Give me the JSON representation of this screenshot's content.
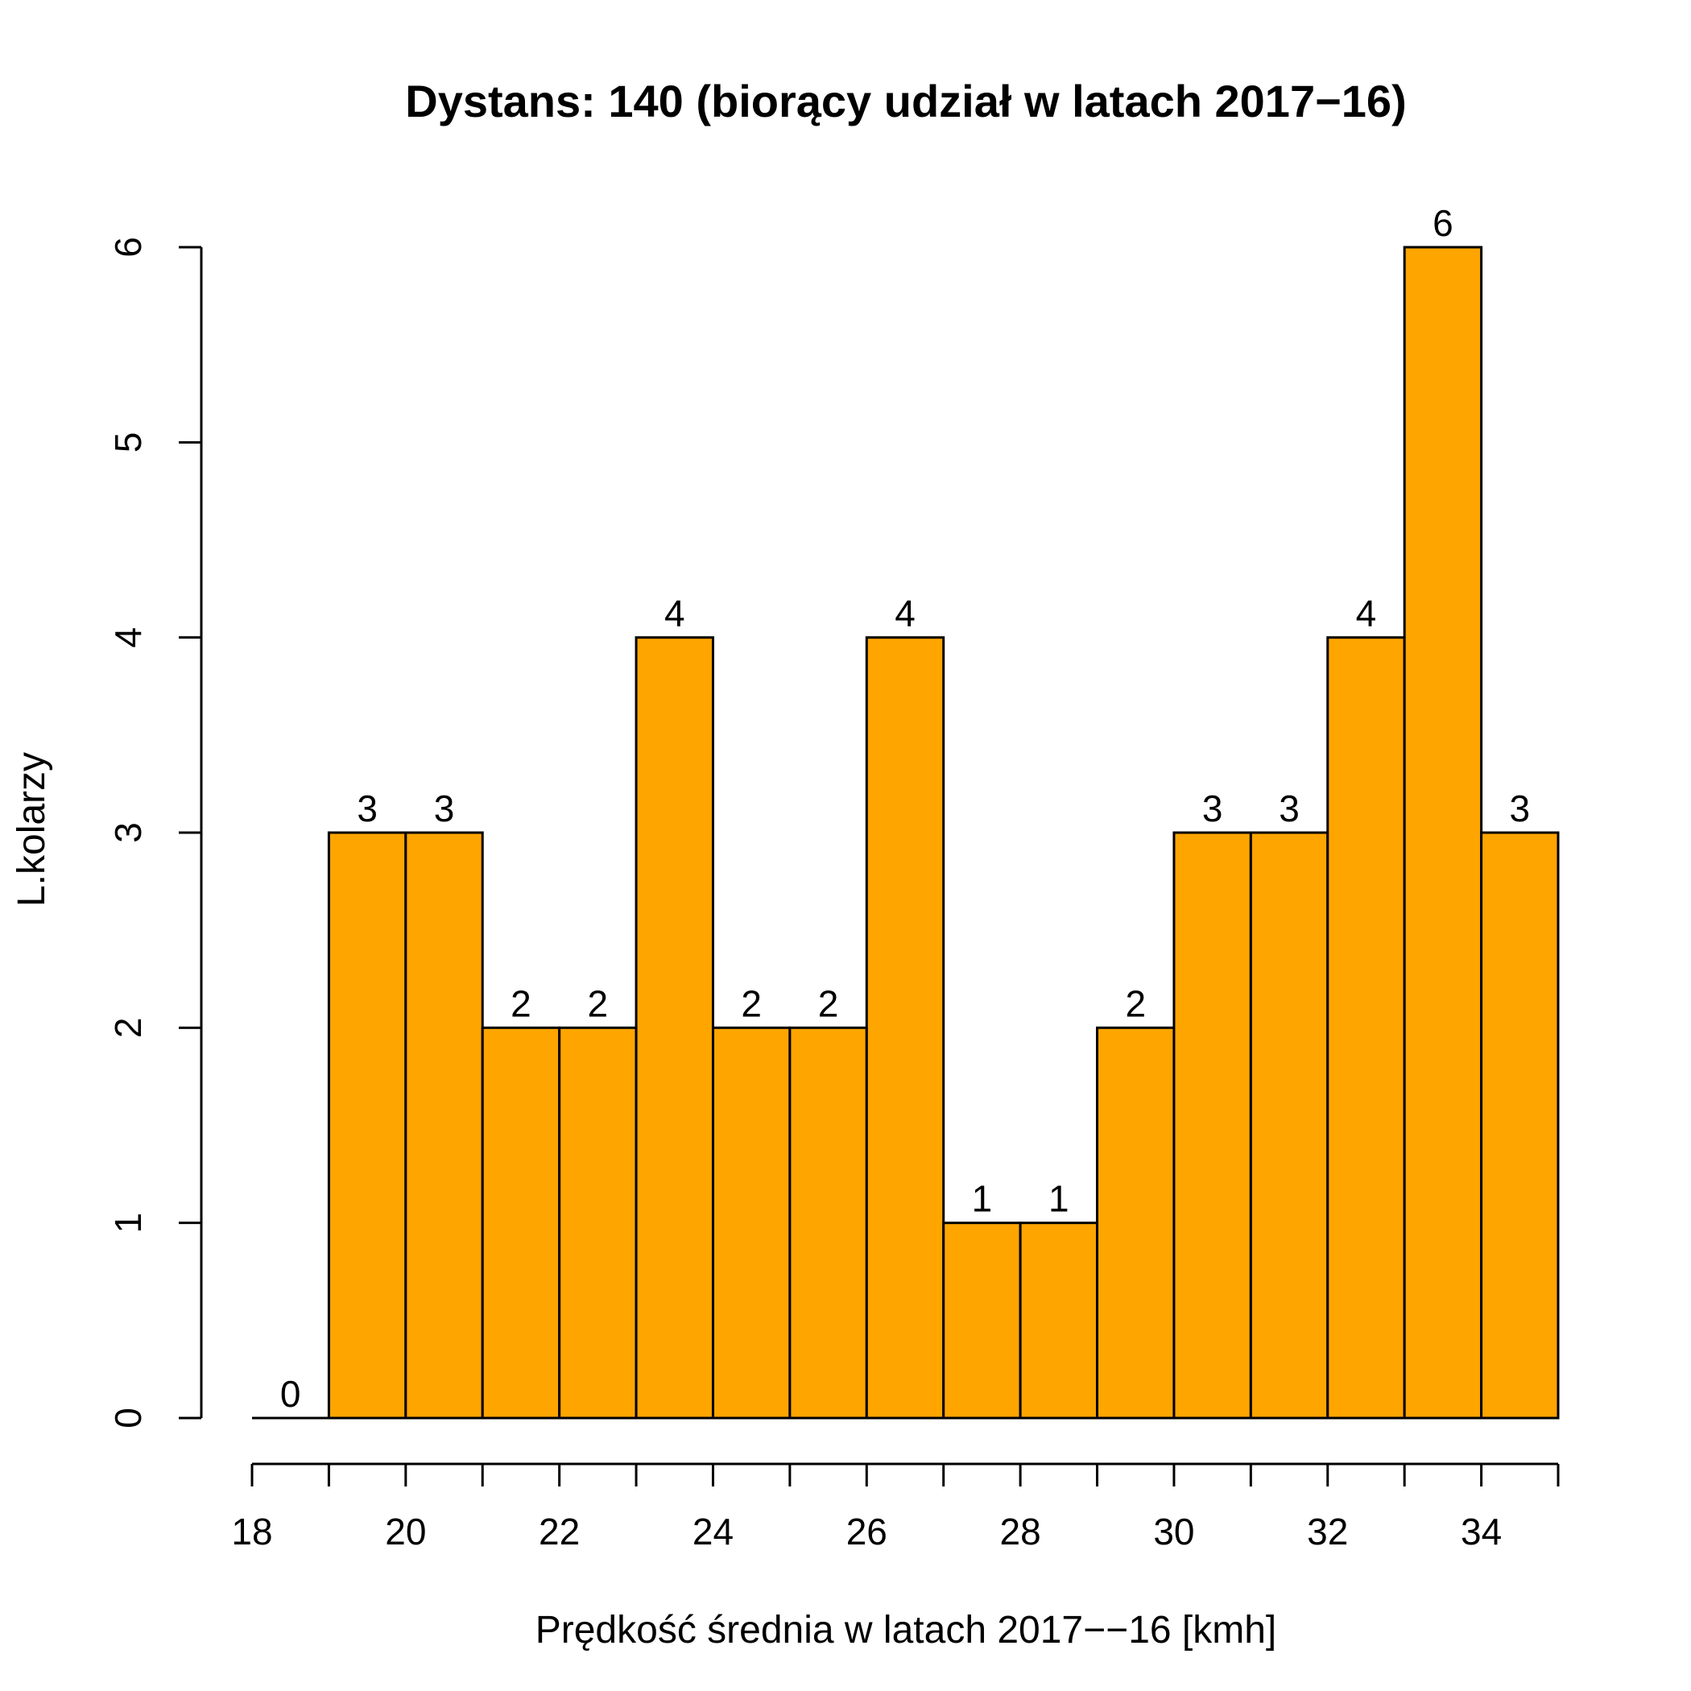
{
  "chart_data": {
    "type": "bar",
    "title": "Dystans: 140 (biorący udział w latach 2017−16)",
    "xlabel": "Prędkość średnia w latach 2017−−16 [kmh]",
    "ylabel": "L.kolarzy",
    "bin_edges": [
      18,
      19,
      20,
      21,
      22,
      23,
      24,
      25,
      26,
      27,
      28,
      29,
      30,
      31,
      32,
      33,
      34,
      35
    ],
    "values": [
      0,
      3,
      3,
      2,
      2,
      4,
      2,
      2,
      4,
      1,
      1,
      2,
      3,
      3,
      4,
      6,
      3
    ],
    "xlim": [
      18,
      35
    ],
    "ylim": [
      0,
      6
    ],
    "x_ticks": [
      "18",
      "20",
      "22",
      "24",
      "26",
      "28",
      "30",
      "32",
      "34"
    ],
    "y_ticks": [
      "0",
      "1",
      "2",
      "3",
      "4",
      "5",
      "6"
    ],
    "bar_color": "#FFA500",
    "grid": false,
    "legend": "none"
  }
}
